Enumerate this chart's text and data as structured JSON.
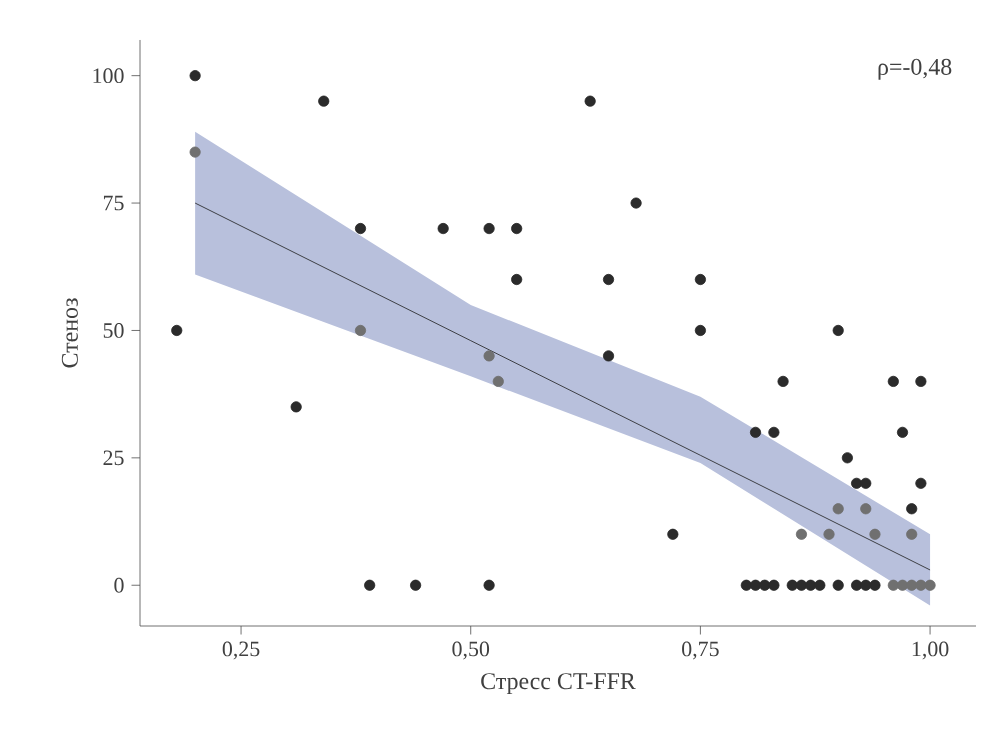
{
  "chart_data": {
    "type": "scatter",
    "xlabel": "Стресс CT-FFR",
    "ylabel": "Стеноз",
    "annotations": [
      "ρ=-0,48"
    ],
    "xlim": [
      0.14,
      1.05
    ],
    "ylim": [
      -8,
      107
    ],
    "xticks": [
      {
        "value": 0.25,
        "label": "0,25"
      },
      {
        "value": 0.5,
        "label": "0,50"
      },
      {
        "value": 0.75,
        "label": "0,75"
      },
      {
        "value": 1.0,
        "label": "1,00"
      }
    ],
    "yticks": [
      0,
      25,
      50,
      75,
      100
    ],
    "grid": false,
    "series": [
      {
        "color": "#2b2b2b",
        "marker": "circle",
        "x": [
          0.18,
          0.2,
          0.34,
          0.38,
          0.31,
          0.39,
          0.44,
          0.52,
          0.47,
          0.52,
          0.55,
          0.55,
          0.63,
          0.68,
          0.65,
          0.65,
          0.75,
          0.75,
          0.72,
          0.9,
          0.84,
          0.96,
          0.99,
          0.81,
          0.83,
          0.97,
          0.91,
          0.92,
          0.93,
          0.99,
          0.98,
          0.8,
          0.81,
          0.82,
          0.83,
          0.85,
          0.86,
          0.87,
          0.88,
          0.9,
          0.92,
          0.93,
          0.94
        ],
        "values": [
          50,
          100,
          95,
          70,
          35,
          0,
          0,
          0,
          70,
          70,
          70,
          60,
          95,
          75,
          60,
          45,
          60,
          50,
          10,
          50,
          40,
          40,
          40,
          30,
          30,
          30,
          25,
          20,
          20,
          20,
          15,
          0,
          0,
          0,
          0,
          0,
          0,
          0,
          0,
          0,
          0,
          0,
          0
        ]
      },
      {
        "color": "#707070",
        "marker": "circle",
        "x": [
          0.2,
          0.38,
          0.52,
          0.53,
          0.9,
          0.93,
          0.86,
          0.89,
          0.94,
          0.98,
          0.96,
          0.97,
          0.98,
          0.99,
          1.0
        ],
        "values": [
          85,
          50,
          45,
          40,
          15,
          15,
          10,
          10,
          10,
          10,
          0,
          0,
          0,
          0,
          0
        ]
      },
      {
        "type": "line",
        "color": "#1e1e1e",
        "x": [
          0.2,
          0.5,
          0.75,
          1.0
        ],
        "values": [
          75,
          48,
          25.5,
          3
        ],
        "lower": [
          61,
          41,
          24,
          -4
        ],
        "upper": [
          89,
          55,
          37,
          10
        ],
        "marker": "none"
      }
    ]
  }
}
